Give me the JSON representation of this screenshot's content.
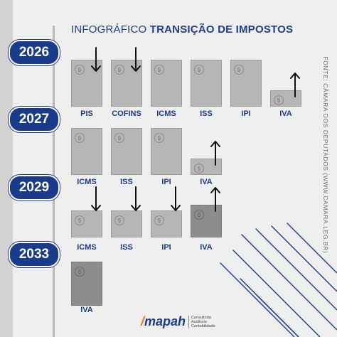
{
  "title": {
    "light": "INFOGRÁFICO",
    "bold": "TRANSIÇÃO DE IMPOSTOS"
  },
  "source": "FONTE: CÂMARA DOS DEPUTADOS (WWW.CAMARA.LEG.BR)",
  "coin_symbol": "$",
  "rows": [
    {
      "year": "2026",
      "items": [
        {
          "label": "PIS",
          "level": 1.0,
          "arrow": "down"
        },
        {
          "label": "COFINS",
          "level": 1.0,
          "arrow": "down"
        },
        {
          "label": "ICMS",
          "level": 1.0,
          "arrow": "none"
        },
        {
          "label": "ISS",
          "level": 1.0,
          "arrow": "none"
        },
        {
          "label": "IPI",
          "level": 1.0,
          "arrow": "none"
        },
        {
          "label": "IVA",
          "level": 0.35,
          "arrow": "up"
        }
      ]
    },
    {
      "year": "2027",
      "items": [
        {
          "label": "ICMS",
          "level": 1.0,
          "arrow": "none"
        },
        {
          "label": "ISS",
          "level": 1.0,
          "arrow": "none"
        },
        {
          "label": "IPI",
          "level": 1.0,
          "arrow": "none"
        },
        {
          "label": "IVA",
          "level": 0.35,
          "arrow": "up"
        }
      ]
    },
    {
      "year": "2029",
      "items": [
        {
          "label": "ICMS",
          "level": 0.7,
          "arrow": "down"
        },
        {
          "label": "ISS",
          "level": 0.7,
          "arrow": "down"
        },
        {
          "label": "IPI",
          "level": 0.7,
          "arrow": "down"
        },
        {
          "label": "IVA",
          "level": 0.85,
          "arrow": "up",
          "dark": true
        }
      ]
    },
    {
      "year": "2033",
      "items": [
        {
          "label": "IVA",
          "level": 1.0,
          "arrow": "none",
          "dark": true
        }
      ]
    }
  ],
  "logo": {
    "name": "mapah",
    "tagline": [
      "Consultoria",
      "Auditoria",
      "Contabilidade"
    ]
  },
  "colors": {
    "brand_blue": "#1a3a8a",
    "tile_gray": "#b6b6b6",
    "tile_dark": "#8d8d8d",
    "background": "#efefef"
  }
}
